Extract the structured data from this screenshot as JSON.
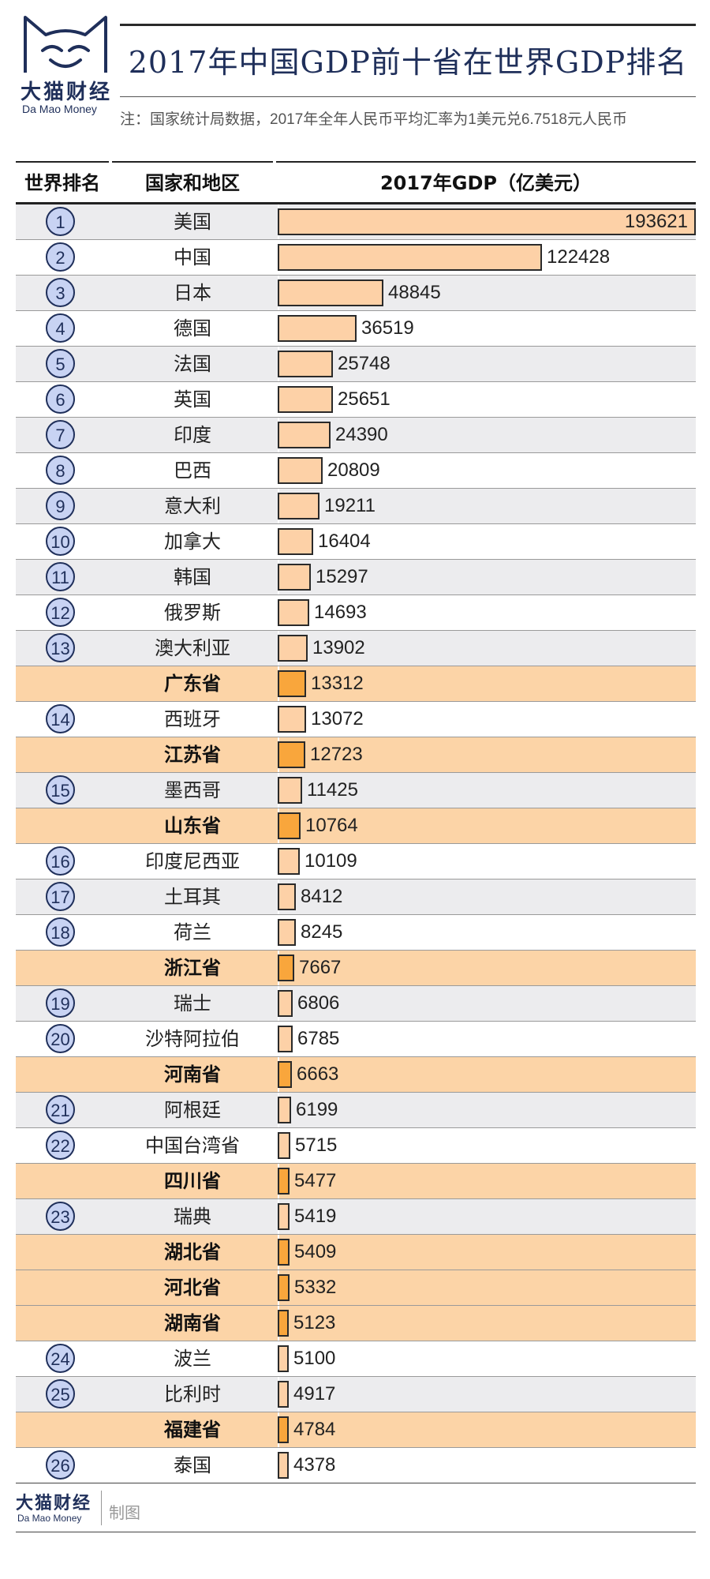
{
  "brand": {
    "name_cn": "大猫财经",
    "name_en": "Da Mao Money"
  },
  "title": "2017年中国GDP前十省在世界GDP排名",
  "note": "注：国家统计局数据，2017年全年人民币平均汇率为1美元兑6.7518元人民币",
  "columns": {
    "rank": "世界排名",
    "name": "国家和地区",
    "gdp": "2017年GDP（亿美元）"
  },
  "footer": {
    "made_by": "制图"
  },
  "colors": {
    "navy": "#1f2f5a",
    "bar_country": "#fdd1a7",
    "bar_province": "#f9a63c",
    "row_province": "#fcd4a7",
    "row_stripe": "#ececee"
  },
  "chart_data": {
    "type": "bar",
    "title": "2017年中国GDP前十省在世界GDP排名",
    "xlabel": "",
    "ylabel": "2017年GDP（亿美元）",
    "orientation": "horizontal",
    "rows": [
      {
        "rank": "1",
        "name": "美国",
        "value": 193621,
        "province": false
      },
      {
        "rank": "2",
        "name": "中国",
        "value": 122428,
        "province": false
      },
      {
        "rank": "3",
        "name": "日本",
        "value": 48845,
        "province": false
      },
      {
        "rank": "4",
        "name": "德国",
        "value": 36519,
        "province": false
      },
      {
        "rank": "5",
        "name": "法国",
        "value": 25748,
        "province": false
      },
      {
        "rank": "6",
        "name": "英国",
        "value": 25651,
        "province": false
      },
      {
        "rank": "7",
        "name": "印度",
        "value": 24390,
        "province": false
      },
      {
        "rank": "8",
        "name": "巴西",
        "value": 20809,
        "province": false
      },
      {
        "rank": "9",
        "name": "意大利",
        "value": 19211,
        "province": false
      },
      {
        "rank": "10",
        "name": "加拿大",
        "value": 16404,
        "province": false
      },
      {
        "rank": "11",
        "name": "韩国",
        "value": 15297,
        "province": false
      },
      {
        "rank": "12",
        "name": "俄罗斯",
        "value": 14693,
        "province": false
      },
      {
        "rank": "13",
        "name": "澳大利亚",
        "value": 13902,
        "province": false
      },
      {
        "rank": "",
        "name": "广东省",
        "value": 13312,
        "province": true
      },
      {
        "rank": "14",
        "name": "西班牙",
        "value": 13072,
        "province": false
      },
      {
        "rank": "",
        "name": "江苏省",
        "value": 12723,
        "province": true
      },
      {
        "rank": "15",
        "name": "墨西哥",
        "value": 11425,
        "province": false
      },
      {
        "rank": "",
        "name": "山东省",
        "value": 10764,
        "province": true
      },
      {
        "rank": "16",
        "name": "印度尼西亚",
        "value": 10109,
        "province": false
      },
      {
        "rank": "17",
        "name": "土耳其",
        "value": 8412,
        "province": false
      },
      {
        "rank": "18",
        "name": "荷兰",
        "value": 8245,
        "province": false
      },
      {
        "rank": "",
        "name": "浙江省",
        "value": 7667,
        "province": true
      },
      {
        "rank": "19",
        "name": "瑞士",
        "value": 6806,
        "province": false
      },
      {
        "rank": "20",
        "name": "沙特阿拉伯",
        "value": 6785,
        "province": false
      },
      {
        "rank": "",
        "name": "河南省",
        "value": 6663,
        "province": true
      },
      {
        "rank": "21",
        "name": "阿根廷",
        "value": 6199,
        "province": false
      },
      {
        "rank": "22",
        "name": "中国台湾省",
        "value": 5715,
        "province": false
      },
      {
        "rank": "",
        "name": "四川省",
        "value": 5477,
        "province": true
      },
      {
        "rank": "23",
        "name": "瑞典",
        "value": 5419,
        "province": false
      },
      {
        "rank": "",
        "name": "湖北省",
        "value": 5409,
        "province": true
      },
      {
        "rank": "",
        "name": "河北省",
        "value": 5332,
        "province": true
      },
      {
        "rank": "",
        "name": "湖南省",
        "value": 5123,
        "province": true
      },
      {
        "rank": "24",
        "name": "波兰",
        "value": 5100,
        "province": false
      },
      {
        "rank": "25",
        "name": "比利时",
        "value": 4917,
        "province": false
      },
      {
        "rank": "",
        "name": "福建省",
        "value": 4784,
        "province": true
      },
      {
        "rank": "26",
        "name": "泰国",
        "value": 4378,
        "province": false
      }
    ]
  }
}
